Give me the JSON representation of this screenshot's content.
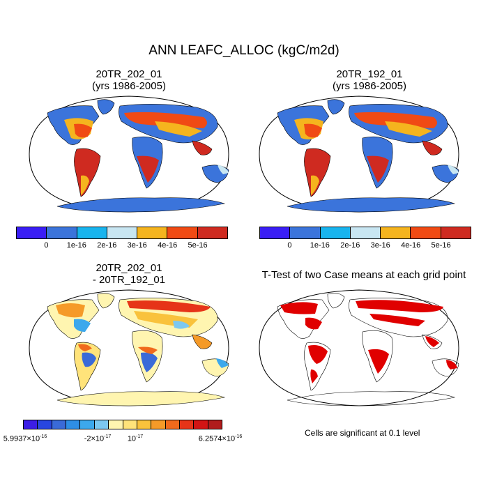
{
  "main_title": "ANN LEAFC_ALLOC (kgC/m2d)",
  "panels": [
    {
      "id": "top-left",
      "title_line1": "20TR_202_01",
      "title_line2": "(yrs 1986-2005)"
    },
    {
      "id": "top-right",
      "title_line1": "20TR_192_01",
      "title_line2": "(yrs 1986-2005)"
    },
    {
      "id": "bottom-left",
      "title_line1": "20TR_202_01",
      "title_line2": "- 20TR_192_01"
    },
    {
      "id": "bottom-right",
      "title_line1": "T-Test of two Case means at each grid point"
    }
  ],
  "colorbar_case": {
    "colors": [
      "#3a1ef5",
      "#3b74db",
      "#18b4ee",
      "#c8e6f2",
      "#f5b41e",
      "#f04a14",
      "#cf2a20"
    ],
    "labels": [
      "0",
      "1e-16",
      "2e-16",
      "3e-16",
      "4e-16",
      "5e-16"
    ]
  },
  "colorbar_diff": {
    "colors": [
      "#3c1ee6",
      "#2846e0",
      "#3a6ad8",
      "#2e8ee6",
      "#3ca8ec",
      "#7cc8f0",
      "#fff5b0",
      "#ffe37a",
      "#f9c23c",
      "#f59a28",
      "#f06a1c",
      "#e63418",
      "#d21414",
      "#b01c1c"
    ],
    "label_min_mantissa": "5.9937×10",
    "label_min_exp": "-16",
    "label_mid1_mantissa": "-2×10",
    "label_mid1_exp": "-17",
    "label_mid2_mantissa": "10",
    "label_mid2_exp": "-17",
    "label_max_mantissa": "6.2574×10",
    "label_max_exp": "-16"
  },
  "ttest_note": "Cells are significant at 0.1 level",
  "colors": {
    "ocean_fill": "#ffffff",
    "antarctica_case": "#3b74db",
    "antarctica_diff": "#fff5b0",
    "significant": "#e00000",
    "outline": "#000000"
  }
}
